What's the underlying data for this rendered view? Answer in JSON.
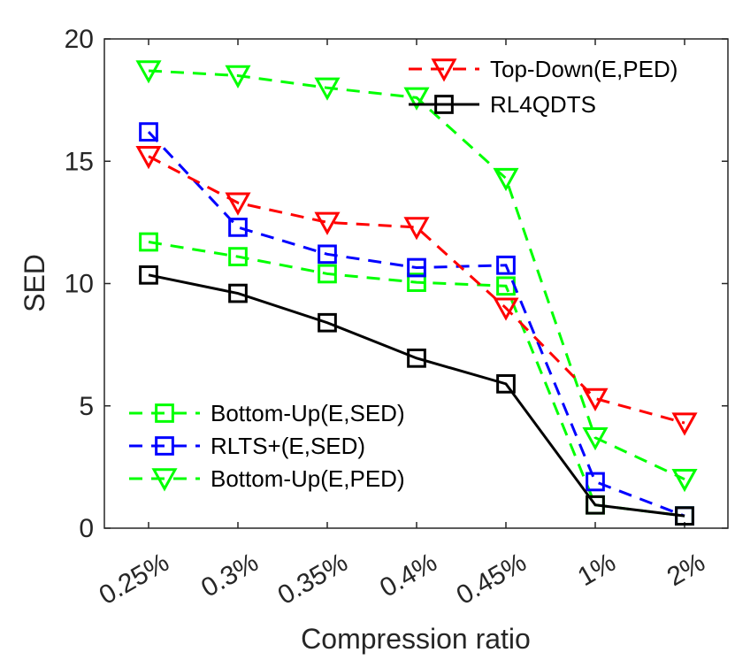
{
  "chart_data": {
    "type": "line",
    "title": "",
    "xlabel": "Compression ratio",
    "ylabel": "SED",
    "categories": [
      "0.25%",
      "0.3%",
      "0.35%",
      "0.4%",
      "0.45%",
      "1%",
      "2%"
    ],
    "ylim": [
      0,
      20
    ],
    "yticks": [
      0,
      5,
      10,
      15,
      20
    ],
    "grid": false,
    "series": [
      {
        "name": "Bottom-Up(E,PED)",
        "color": "#00ff00",
        "dash": "dashed",
        "marker": "triangle-down",
        "values": [
          18.7,
          18.5,
          18.0,
          17.6,
          14.3,
          3.7,
          2.0
        ]
      },
      {
        "name": "Bottom-Up(E,SED)",
        "color": "#00ff00",
        "dash": "dashed",
        "marker": "square",
        "values": [
          11.7,
          11.1,
          10.4,
          10.05,
          9.9,
          0.95,
          0.5
        ]
      },
      {
        "name": "RLTS+(E,SED)",
        "color": "#0000ff",
        "dash": "dashed",
        "marker": "square",
        "values": [
          16.2,
          12.3,
          11.2,
          10.65,
          10.75,
          1.9,
          0.5
        ]
      },
      {
        "name": "Top-Down(E,PED)",
        "color": "#ff0000",
        "dash": "dashed",
        "marker": "triangle-down",
        "values": [
          15.2,
          13.3,
          12.5,
          12.3,
          9.0,
          5.3,
          4.3
        ]
      },
      {
        "name": "RL4QDTS",
        "color": "#000000",
        "dash": "solid",
        "marker": "square",
        "values": [
          10.35,
          9.6,
          8.4,
          6.95,
          5.9,
          0.95,
          0.5
        ]
      }
    ],
    "legends": [
      {
        "placement": "top-right",
        "entries": [
          "Top-Down(E,PED)",
          "RL4QDTS"
        ]
      },
      {
        "placement": "bottom-left",
        "entries": [
          "Bottom-Up(E,SED)",
          "RLTS+(E,SED)",
          "Bottom-Up(E,PED)"
        ]
      }
    ]
  }
}
